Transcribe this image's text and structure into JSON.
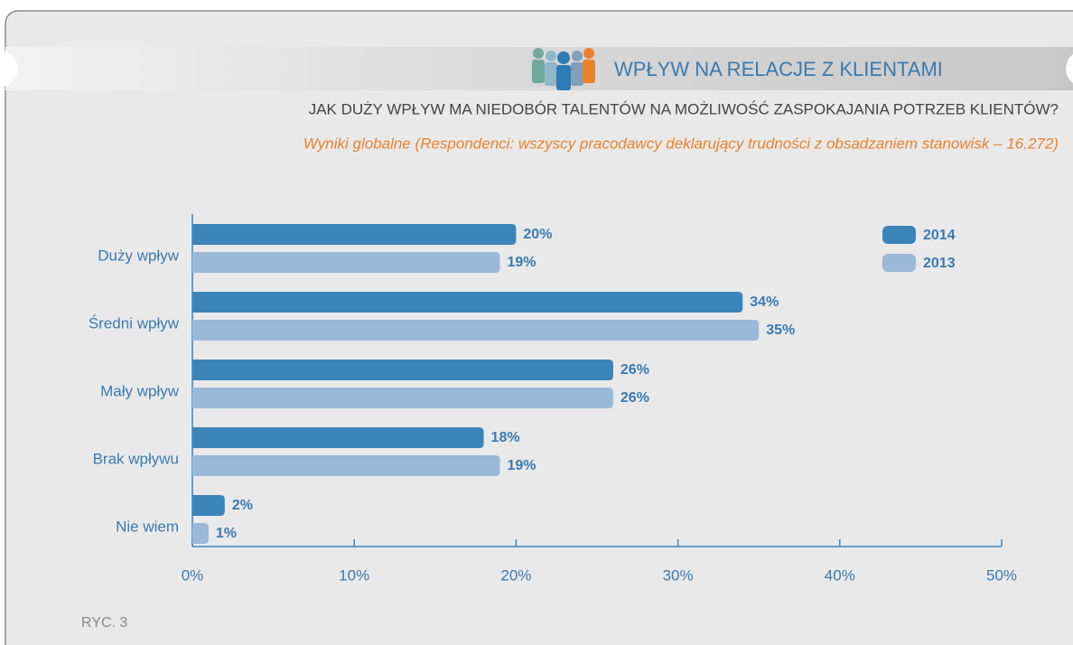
{
  "chart_data": {
    "type": "hbar",
    "title": "WPŁYW NA RELACJE Z KLIENTAMI",
    "subtitle": "JAK DUŻY WPŁYW MA NIEDOBÓR TALENTÓW NA MOŻLIWOŚĆ ZASPOKAJANIA POTRZEB KLIENTÓW?",
    "note": "Wyniki globalne (Respondenci: wszyscy pracodawcy deklarujący trudności z obsadzaniem stanowisk – 16.272)",
    "figure_label": "RYC. 3",
    "categories": [
      "Duży wpływ",
      "Średni wpływ",
      "Mały wpływ",
      "Brak wpływu",
      "Nie wiem"
    ],
    "series": [
      {
        "name": "2014",
        "color": "#3a84b9",
        "values": [
          20,
          34,
          26,
          18,
          2
        ],
        "value_labels": [
          "20%",
          "34%",
          "26%",
          "18%",
          "2%"
        ]
      },
      {
        "name": "2013",
        "color": "#9ab8d8",
        "values": [
          19,
          35,
          26,
          19,
          1
        ],
        "value_labels": [
          "19%",
          "35%",
          "26%",
          "19%",
          "1%"
        ]
      }
    ],
    "xlim": [
      0,
      50
    ],
    "xticks": [
      {
        "value": 0,
        "label": "0%"
      },
      {
        "value": 10,
        "label": "10%"
      },
      {
        "value": 20,
        "label": "20%"
      },
      {
        "value": 30,
        "label": "30%"
      },
      {
        "value": 40,
        "label": "40%"
      },
      {
        "value": 50,
        "label": "50%"
      }
    ],
    "legend": "top-right"
  }
}
